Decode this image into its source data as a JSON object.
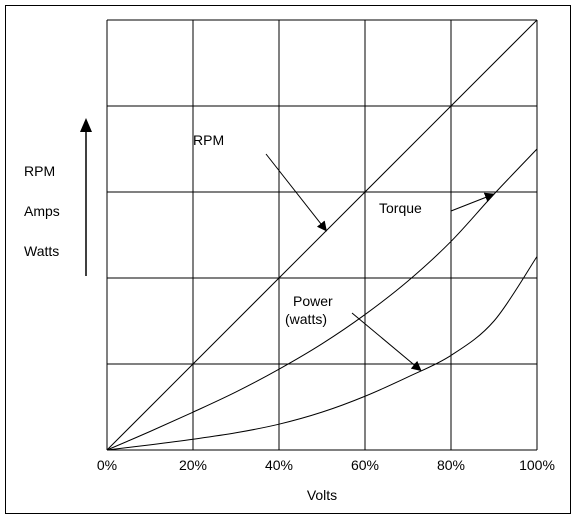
{
  "chart_data": {
    "type": "line",
    "title": "",
    "xlabel": "Volts",
    "ylabel_lines": [
      "RPM",
      "Amps",
      "Watts"
    ],
    "x_ticks": [
      "0%",
      "20%",
      "40%",
      "60%",
      "80%",
      "100%"
    ],
    "xlim": [
      0,
      100
    ],
    "ylim": [
      0,
      100
    ],
    "grid": true,
    "series": [
      {
        "label": "RPM",
        "x": [
          0,
          20,
          40,
          60,
          80,
          100
        ],
        "y": [
          0,
          20,
          40,
          60,
          80,
          100
        ]
      },
      {
        "label": "Torque",
        "x": [
          0,
          10,
          20,
          30,
          40,
          50,
          60,
          70,
          80,
          90,
          100
        ],
        "y": [
          0,
          4.3,
          8.8,
          13.5,
          18.8,
          24.7,
          31.5,
          39.3,
          48.5,
          59.5,
          70
        ]
      },
      {
        "label": "Power\n(watts)",
        "x": [
          0,
          10,
          20,
          30,
          40,
          50,
          60,
          70,
          80,
          90,
          100
        ],
        "y": [
          0,
          1.2,
          2.5,
          4,
          6,
          8.8,
          12.5,
          17,
          22,
          30,
          45
        ]
      }
    ],
    "annotations": [
      {
        "text": "RPM",
        "target_series": 0,
        "target_x": 51
      },
      {
        "text": "Torque",
        "target_series": 1,
        "target_x": 90
      },
      {
        "text": "Power\n(watts)",
        "target_series": 2,
        "target_x": 73
      }
    ]
  }
}
